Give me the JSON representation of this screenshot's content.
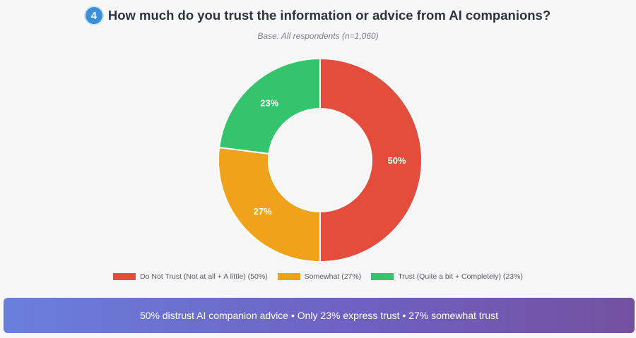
{
  "header": {
    "step_number": "4",
    "title": "How much do you trust the information or advice from AI companions?",
    "subtitle": "Base: All respondents (n=1,060)"
  },
  "chart_data": {
    "type": "pie",
    "donut": true,
    "slices": [
      {
        "label": "Do Not Trust (Not at all + A little) (50%)",
        "value": 50,
        "display": "50%",
        "color": "#e44c3c"
      },
      {
        "label": "Somewhat (27%)",
        "value": 27,
        "display": "27%",
        "color": "#f0a21a"
      },
      {
        "label": "Trust (Quite a bit + Completely) (23%)",
        "value": 23,
        "display": "23%",
        "color": "#34c46b"
      }
    ],
    "legend_position": "bottom"
  },
  "banner": {
    "text": "50% distrust AI companion advice • Only 23% express trust • 27% somewhat trust"
  }
}
